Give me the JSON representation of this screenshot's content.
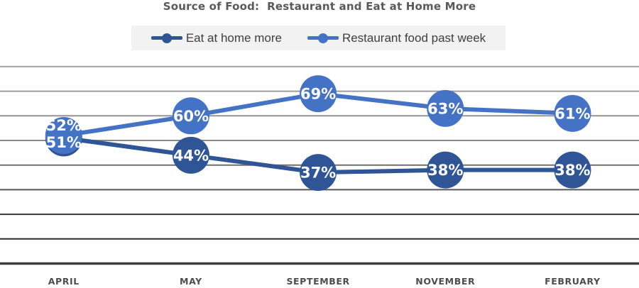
{
  "title": "Source of Food:  Restaurant and Eat at Home More",
  "legend": {
    "background": "#F2F2F2",
    "text_color": "#3F3F3F"
  },
  "chart_data": {
    "type": "line",
    "title": "Source of Food:  Restaurant and Eat at Home More",
    "categories": [
      "APRIL",
      "MAY",
      "SEPTEMBER",
      "NOVEMBER",
      "FEBRUARY"
    ],
    "series": [
      {
        "name": "Eat at home more",
        "color": "#2F5597",
        "values": [
          51,
          44,
          37,
          38,
          38
        ],
        "labels": [
          "51%",
          "44%",
          "37%",
          "38%",
          "38%"
        ]
      },
      {
        "name": "Restaurant food past week",
        "color": "#4472C4",
        "values": [
          52,
          60,
          69,
          63,
          61
        ],
        "labels": [
          "52%",
          "60%",
          "69%",
          "63%",
          "61%"
        ]
      }
    ],
    "ylim": [
      0,
      80
    ],
    "grid_step": 10,
    "grid": true,
    "legend_position": "top",
    "xlabel": "",
    "ylabel": "",
    "data_label_color": "#FFFFFF",
    "axis_label_color": "#4D4D4D"
  }
}
